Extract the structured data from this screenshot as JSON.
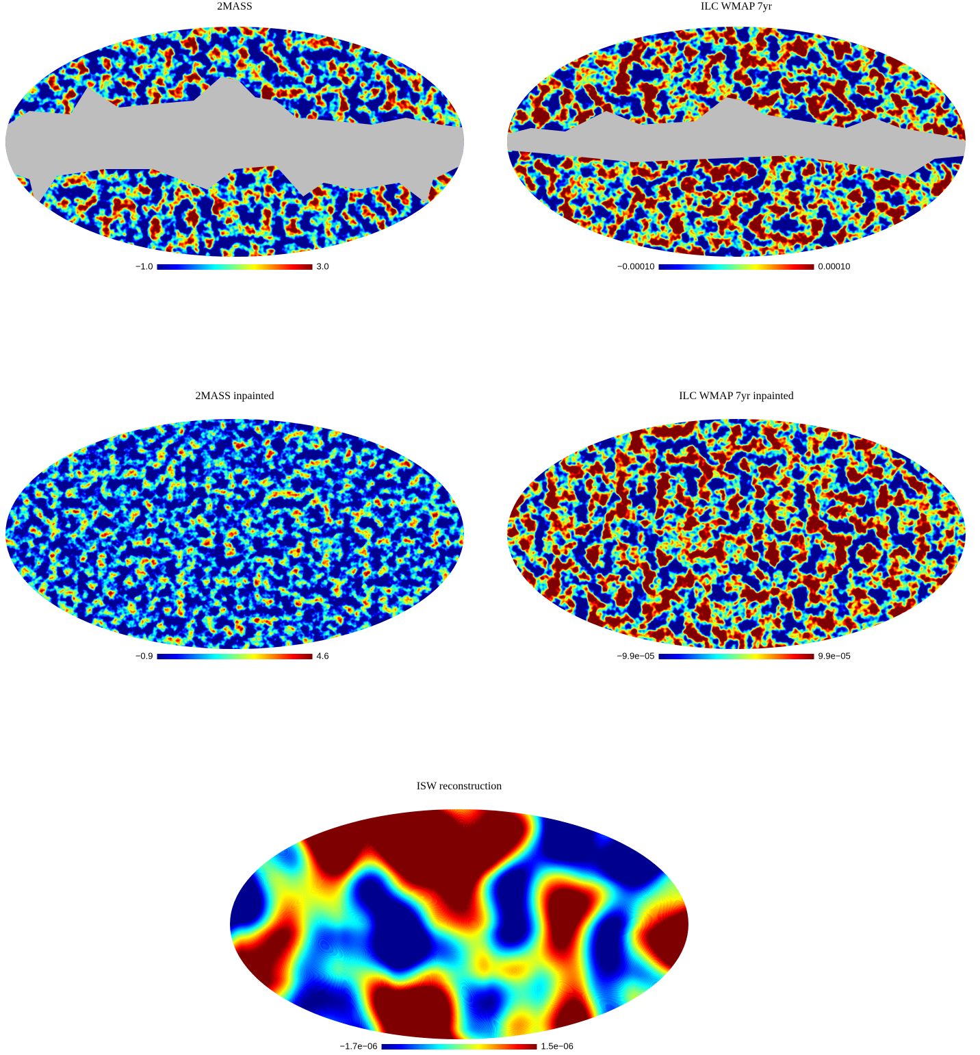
{
  "chart_data": [
    {
      "type": "map",
      "title": "2MASS",
      "cticks": [
        {
          "value": -1.0,
          "label": "−1.0"
        },
        {
          "value": 3.0,
          "label": "3.0"
        }
      ]
    },
    {
      "type": "map",
      "title": "ILC WMAP 7yr",
      "cticks": [
        {
          "value": -0.0001,
          "label": "−0.00010"
        },
        {
          "value": 0.0001,
          "label": "0.00010"
        }
      ]
    },
    {
      "type": "map",
      "title": "2MASS inpainted",
      "cticks": [
        {
          "value": -0.9,
          "label": "−0.9"
        },
        {
          "value": 4.6,
          "label": "4.6"
        }
      ]
    },
    {
      "type": "map",
      "title": "ILC WMAP 7yr inpainted",
      "cticks": [
        {
          "value": -9.9e-05,
          "label": "−9.9e−05"
        },
        {
          "value": 9.9e-05,
          "label": "9.9e−05"
        }
      ]
    },
    {
      "type": "map",
      "title": "ISW reconstruction",
      "cticks": [
        {
          "value": -1.7e-06,
          "label": "−1.7e−06"
        },
        {
          "value": 1.5e-06,
          "label": "1.5e−06"
        }
      ]
    }
  ]
}
